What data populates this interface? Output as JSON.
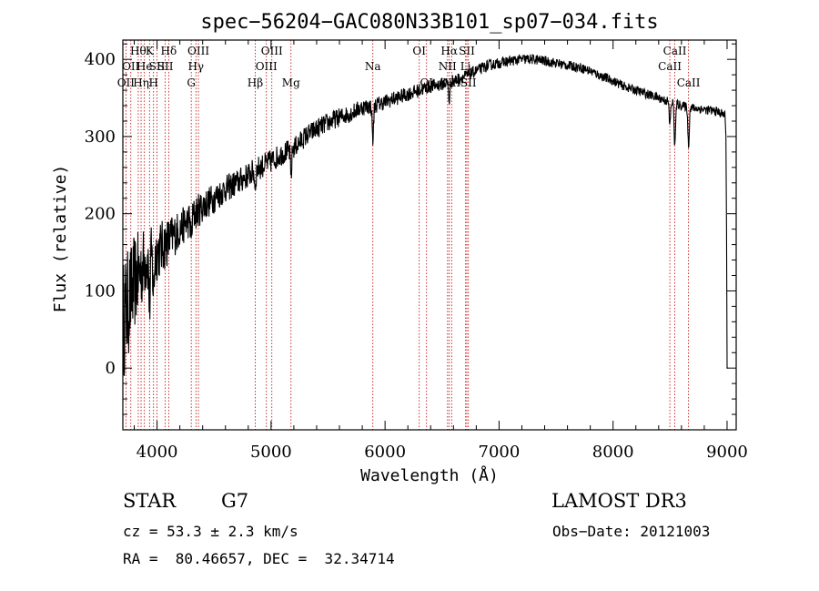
{
  "chart_data": {
    "type": "line",
    "title": "spec−56204−GAC080N33B101_sp07−034.fits",
    "xlabel": "Wavelength (Å)",
    "ylabel": "Flux (relative)",
    "xlim": [
      3700,
      9080
    ],
    "ylim": [
      -80,
      425
    ],
    "xticks": [
      4000,
      5000,
      6000,
      7000,
      8000,
      9000
    ],
    "yticks": [
      0,
      100,
      200,
      300,
      400
    ],
    "grid": false,
    "series": [
      {
        "name": "spectrum",
        "continuum": [
          [
            3700,
            60
          ],
          [
            3800,
            110
          ],
          [
            3900,
            140
          ],
          [
            4000,
            150
          ],
          [
            4100,
            165
          ],
          [
            4200,
            180
          ],
          [
            4300,
            195
          ],
          [
            4400,
            210
          ],
          [
            4500,
            220
          ],
          [
            4600,
            232
          ],
          [
            4700,
            240
          ],
          [
            4800,
            250
          ],
          [
            4900,
            260
          ],
          [
            5000,
            268
          ],
          [
            5100,
            278
          ],
          [
            5200,
            285
          ],
          [
            5300,
            300
          ],
          [
            5400,
            310
          ],
          [
            5500,
            318
          ],
          [
            5600,
            325
          ],
          [
            5700,
            330
          ],
          [
            5800,
            338
          ],
          [
            5900,
            340
          ],
          [
            6000,
            345
          ],
          [
            6100,
            350
          ],
          [
            6200,
            355
          ],
          [
            6300,
            360
          ],
          [
            6400,
            365
          ],
          [
            6500,
            368
          ],
          [
            6600,
            372
          ],
          [
            6700,
            378
          ],
          [
            6800,
            385
          ],
          [
            6900,
            392
          ],
          [
            7000,
            395
          ],
          [
            7100,
            398
          ],
          [
            7200,
            400
          ],
          [
            7300,
            400
          ],
          [
            7400,
            398
          ],
          [
            7500,
            395
          ],
          [
            7600,
            392
          ],
          [
            7700,
            390
          ],
          [
            7800,
            385
          ],
          [
            7900,
            378
          ],
          [
            8000,
            372
          ],
          [
            8100,
            365
          ],
          [
            8200,
            360
          ],
          [
            8300,
            355
          ],
          [
            8400,
            350
          ],
          [
            8500,
            345
          ],
          [
            8600,
            340
          ],
          [
            8700,
            337
          ],
          [
            8800,
            335
          ],
          [
            8900,
            333
          ],
          [
            8980,
            328
          ]
        ],
        "noise_amplitude": [
          [
            3700,
            80
          ],
          [
            3900,
            45
          ],
          [
            4200,
            25
          ],
          [
            4600,
            18
          ],
          [
            5200,
            14
          ],
          [
            6000,
            10
          ],
          [
            7000,
            7
          ],
          [
            8000,
            6
          ],
          [
            9000,
            6
          ]
        ],
        "absorption_features": [
          {
            "lambda": 3934,
            "depth": 60
          },
          {
            "lambda": 3969,
            "depth": 50
          },
          {
            "lambda": 4300,
            "depth": 25
          },
          {
            "lambda": 4861,
            "depth": 20
          },
          {
            "lambda": 5175,
            "depth": 35
          },
          {
            "lambda": 5893,
            "depth": 45
          },
          {
            "lambda": 6563,
            "depth": 25
          },
          {
            "lambda": 8498,
            "depth": 30
          },
          {
            "lambda": 8542,
            "depth": 55
          },
          {
            "lambda": 8662,
            "depth": 50
          }
        ],
        "end_drop": [
          [
            9000,
            0
          ],
          [
            9010,
            0
          ]
        ]
      }
    ],
    "line_markers": [
      {
        "wavelength": 3727,
        "label": "OII",
        "row": 2
      },
      {
        "wavelength": 3770,
        "label": "OII",
        "row": 1
      },
      {
        "wavelength": 3835,
        "label": "Hθ",
        "row": 0
      },
      {
        "wavelength": 3860,
        "label": "Hη",
        "row": 2
      },
      {
        "wavelength": 3889,
        "label": "He",
        "row": 1
      },
      {
        "wavelength": 3934,
        "label": "K",
        "row": 0
      },
      {
        "wavelength": 3969,
        "label": "H",
        "row": 2
      },
      {
        "wavelength": 4000,
        "label": "SII",
        "row": 1
      },
      {
        "wavelength": 4102,
        "label": "Hδ",
        "row": 0
      },
      {
        "wavelength": 4072,
        "label": "SII",
        "row": 1
      },
      {
        "wavelength": 4300,
        "label": "G",
        "row": 2
      },
      {
        "wavelength": 4341,
        "label": "Hγ",
        "row": 1
      },
      {
        "wavelength": 4363,
        "label": "OIII",
        "row": 0
      },
      {
        "wavelength": 4861,
        "label": "Hβ",
        "row": 2
      },
      {
        "wavelength": 4959,
        "label": "OIII",
        "row": 1
      },
      {
        "wavelength": 5007,
        "label": "OIII",
        "row": 0
      },
      {
        "wavelength": 5175,
        "label": "Mg",
        "row": 2
      },
      {
        "wavelength": 5893,
        "label": "Na",
        "row": 1
      },
      {
        "wavelength": 6300,
        "label": "OI",
        "row": 0
      },
      {
        "wavelength": 6364,
        "label": "OI",
        "row": 2
      },
      {
        "wavelength": 6548,
        "label": "NII",
        "row": 1
      },
      {
        "wavelength": 6563,
        "label": "Hα",
        "row": 0
      },
      {
        "wavelength": 6584,
        "label": "NII",
        "row": 2
      },
      {
        "wavelength": 6707,
        "label": "Li",
        "row": 1
      },
      {
        "wavelength": 6717,
        "label": "SII",
        "row": 0
      },
      {
        "wavelength": 6731,
        "label": "SII",
        "row": 2
      },
      {
        "wavelength": 8498,
        "label": "CaII",
        "row": 1
      },
      {
        "wavelength": 8542,
        "label": "CaII",
        "row": 0
      },
      {
        "wavelength": 8662,
        "label": "CaII",
        "row": 2
      }
    ]
  },
  "info": {
    "object_class": "STAR",
    "subclass": "G7",
    "survey": "LAMOST DR3",
    "redshift_line": "cz = 53.3 ± 2.3 km/s",
    "obs_date_line": "Obs−Date: 20121003",
    "coords_line": "RA =  80.46657, DEC =  32.34714"
  }
}
